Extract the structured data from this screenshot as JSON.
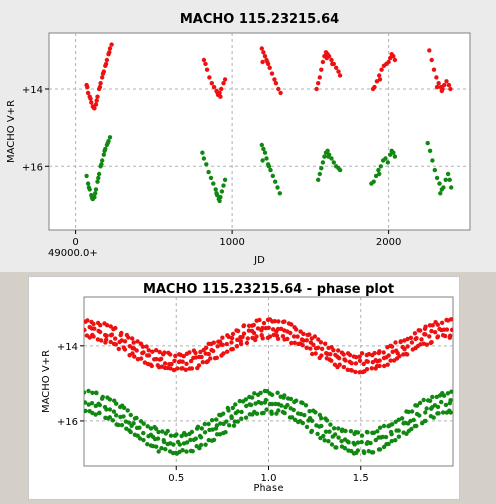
{
  "chart_data": [
    {
      "type": "scatter",
      "title": "MACHO 115.23215.64",
      "xlabel": "JD",
      "ylabel": "MACHO V+R",
      "x_offset_label": "49000.0+",
      "xlim": [
        -170,
        2520
      ],
      "ylim": [
        17.65,
        12.55
      ],
      "y_inverted": true,
      "x_ticks": [
        0,
        1000,
        2000
      ],
      "x_tick_labels": [
        "0",
        "1000",
        "2000"
      ],
      "y_ticks": [
        14,
        16
      ],
      "y_tick_labels": [
        "+14",
        "+16"
      ],
      "grid": true,
      "series": [
        {
          "color": "#ee1111",
          "points": [
            [
              70,
              13.9
            ],
            [
              80,
              14.1
            ],
            [
              90,
              14.2
            ],
            [
              100,
              14.35
            ],
            [
              110,
              14.45
            ],
            [
              120,
              14.5
            ],
            [
              130,
              14.4
            ],
            [
              140,
              14.2
            ],
            [
              150,
              14.0
            ],
            [
              160,
              13.85
            ],
            [
              170,
              13.7
            ],
            [
              180,
              13.55
            ],
            [
              190,
              13.4
            ],
            [
              200,
              13.25
            ],
            [
              210,
              13.1
            ],
            [
              220,
              12.95
            ],
            [
              230,
              12.85
            ],
            [
              75,
              13.95
            ],
            [
              95,
              14.25
            ],
            [
              115,
              14.48
            ],
            [
              135,
              14.3
            ],
            [
              155,
              13.95
            ],
            [
              175,
              13.6
            ],
            [
              195,
              13.35
            ],
            [
              215,
              13.05
            ],
            [
              820,
              13.25
            ],
            [
              830,
              13.35
            ],
            [
              840,
              13.5
            ],
            [
              855,
              13.7
            ],
            [
              870,
              13.85
            ],
            [
              885,
              13.95
            ],
            [
              900,
              14.05
            ],
            [
              910,
              14.15
            ],
            [
              920,
              14.1
            ],
            [
              930,
              14.0
            ],
            [
              945,
              13.85
            ],
            [
              955,
              13.75
            ],
            [
              905,
              14.08
            ],
            [
              925,
              14.2
            ],
            [
              1190,
              12.95
            ],
            [
              1200,
              13.05
            ],
            [
              1210,
              13.15
            ],
            [
              1220,
              13.25
            ],
            [
              1230,
              13.35
            ],
            [
              1240,
              13.45
            ],
            [
              1255,
              13.6
            ],
            [
              1270,
              13.75
            ],
            [
              1280,
              13.85
            ],
            [
              1295,
              14.0
            ],
            [
              1310,
              14.1
            ],
            [
              1195,
              13.3
            ],
            [
              1225,
              13.3
            ],
            [
              1540,
              14.0
            ],
            [
              1550,
              13.85
            ],
            [
              1560,
              13.7
            ],
            [
              1570,
              13.5
            ],
            [
              1580,
              13.3
            ],
            [
              1590,
              13.15
            ],
            [
              1600,
              13.05
            ],
            [
              1610,
              13.1
            ],
            [
              1620,
              13.15
            ],
            [
              1635,
              13.25
            ],
            [
              1650,
              13.35
            ],
            [
              1665,
              13.45
            ],
            [
              1680,
              13.55
            ],
            [
              1690,
              13.65
            ],
            [
              1605,
              13.2
            ],
            [
              1640,
              13.35
            ],
            [
              1900,
              14.0
            ],
            [
              1910,
              13.95
            ],
            [
              1925,
              13.8
            ],
            [
              1940,
              13.65
            ],
            [
              1955,
              13.5
            ],
            [
              1970,
              13.4
            ],
            [
              1985,
              13.35
            ],
            [
              2000,
              13.3
            ],
            [
              2010,
              13.2
            ],
            [
              2020,
              13.1
            ],
            [
              2030,
              13.15
            ],
            [
              2040,
              13.25
            ],
            [
              1945,
              13.75
            ],
            [
              2260,
              13.0
            ],
            [
              2275,
              13.25
            ],
            [
              2290,
              13.5
            ],
            [
              2305,
              13.7
            ],
            [
              2320,
              13.85
            ],
            [
              2335,
              13.95
            ],
            [
              2345,
              14.0
            ],
            [
              2355,
              13.9
            ],
            [
              2370,
              13.8
            ],
            [
              2385,
              13.9
            ],
            [
              2395,
              14.0
            ],
            [
              2310,
              13.95
            ],
            [
              2340,
              14.05
            ]
          ]
        },
        {
          "color": "#118811",
          "points": [
            [
              70,
              16.25
            ],
            [
              80,
              16.45
            ],
            [
              90,
              16.6
            ],
            [
              100,
              16.75
            ],
            [
              110,
              16.85
            ],
            [
              120,
              16.8
            ],
            [
              130,
              16.6
            ],
            [
              140,
              16.4
            ],
            [
              150,
              16.2
            ],
            [
              160,
              16.0
            ],
            [
              170,
              15.85
            ],
            [
              180,
              15.7
            ],
            [
              190,
              15.55
            ],
            [
              200,
              15.45
            ],
            [
              210,
              15.35
            ],
            [
              220,
              15.25
            ],
            [
              85,
              16.55
            ],
            [
              105,
              16.82
            ],
            [
              125,
              16.7
            ],
            [
              145,
              16.3
            ],
            [
              165,
              15.95
            ],
            [
              185,
              15.6
            ],
            [
              205,
              15.4
            ],
            [
              810,
              15.65
            ],
            [
              820,
              15.8
            ],
            [
              835,
              15.95
            ],
            [
              850,
              16.15
            ],
            [
              865,
              16.3
            ],
            [
              880,
              16.45
            ],
            [
              895,
              16.6
            ],
            [
              905,
              16.75
            ],
            [
              915,
              16.85
            ],
            [
              925,
              16.8
            ],
            [
              935,
              16.65
            ],
            [
              945,
              16.5
            ],
            [
              955,
              16.35
            ],
            [
              900,
              16.7
            ],
            [
              920,
              16.9
            ],
            [
              1190,
              15.45
            ],
            [
              1200,
              15.55
            ],
            [
              1210,
              15.65
            ],
            [
              1220,
              15.8
            ],
            [
              1230,
              15.95
            ],
            [
              1245,
              16.1
            ],
            [
              1260,
              16.25
            ],
            [
              1275,
              16.4
            ],
            [
              1290,
              16.55
            ],
            [
              1305,
              16.7
            ],
            [
              1195,
              15.85
            ],
            [
              1235,
              16.0
            ],
            [
              1550,
              16.35
            ],
            [
              1560,
              16.2
            ],
            [
              1570,
              16.05
            ],
            [
              1580,
              15.9
            ],
            [
              1590,
              15.75
            ],
            [
              1600,
              15.65
            ],
            [
              1610,
              15.6
            ],
            [
              1620,
              15.7
            ],
            [
              1635,
              15.8
            ],
            [
              1650,
              15.9
            ],
            [
              1665,
              16.0
            ],
            [
              1680,
              16.05
            ],
            [
              1690,
              16.1
            ],
            [
              1615,
              15.75
            ],
            [
              1890,
              16.45
            ],
            [
              1905,
              16.4
            ],
            [
              1920,
              16.25
            ],
            [
              1935,
              16.1
            ],
            [
              1950,
              16.0
            ],
            [
              1965,
              15.85
            ],
            [
              1980,
              15.8
            ],
            [
              1995,
              15.9
            ],
            [
              2010,
              15.7
            ],
            [
              2020,
              15.6
            ],
            [
              2030,
              15.65
            ],
            [
              2040,
              15.75
            ],
            [
              1940,
              16.2
            ],
            [
              2250,
              15.4
            ],
            [
              2265,
              15.6
            ],
            [
              2280,
              15.85
            ],
            [
              2295,
              16.1
            ],
            [
              2310,
              16.3
            ],
            [
              2325,
              16.45
            ],
            [
              2340,
              16.6
            ],
            [
              2350,
              16.55
            ],
            [
              2365,
              16.35
            ],
            [
              2380,
              16.2
            ],
            [
              2390,
              16.35
            ],
            [
              2400,
              16.55
            ],
            [
              2330,
              16.7
            ]
          ]
        }
      ]
    },
    {
      "type": "scatter",
      "title": "MACHO 115.23215.64 - phase plot",
      "xlabel": "Phase",
      "ylabel": "MACHO V+R",
      "xlim": [
        0,
        2
      ],
      "ylim": [
        17.2,
        12.7
      ],
      "y_inverted": true,
      "x_ticks": [
        0.5,
        1.0,
        1.5
      ],
      "x_tick_labels": [
        "0.5",
        "1.0",
        "1.5"
      ],
      "y_ticks": [
        14,
        16
      ],
      "y_tick_labels": [
        "+14",
        "+16"
      ],
      "grid": true,
      "series": [
        {
          "color": "#ee1111",
          "mean": 14.0,
          "amplitude": 0.45,
          "phase_peak": 1.0,
          "strands": [
            -0.2,
            0.0,
            0.2
          ]
        },
        {
          "color": "#118811",
          "mean": 16.05,
          "amplitude": 0.55,
          "phase_peak": 1.0,
          "strands": [
            -0.25,
            0.0,
            0.25
          ]
        }
      ]
    }
  ]
}
